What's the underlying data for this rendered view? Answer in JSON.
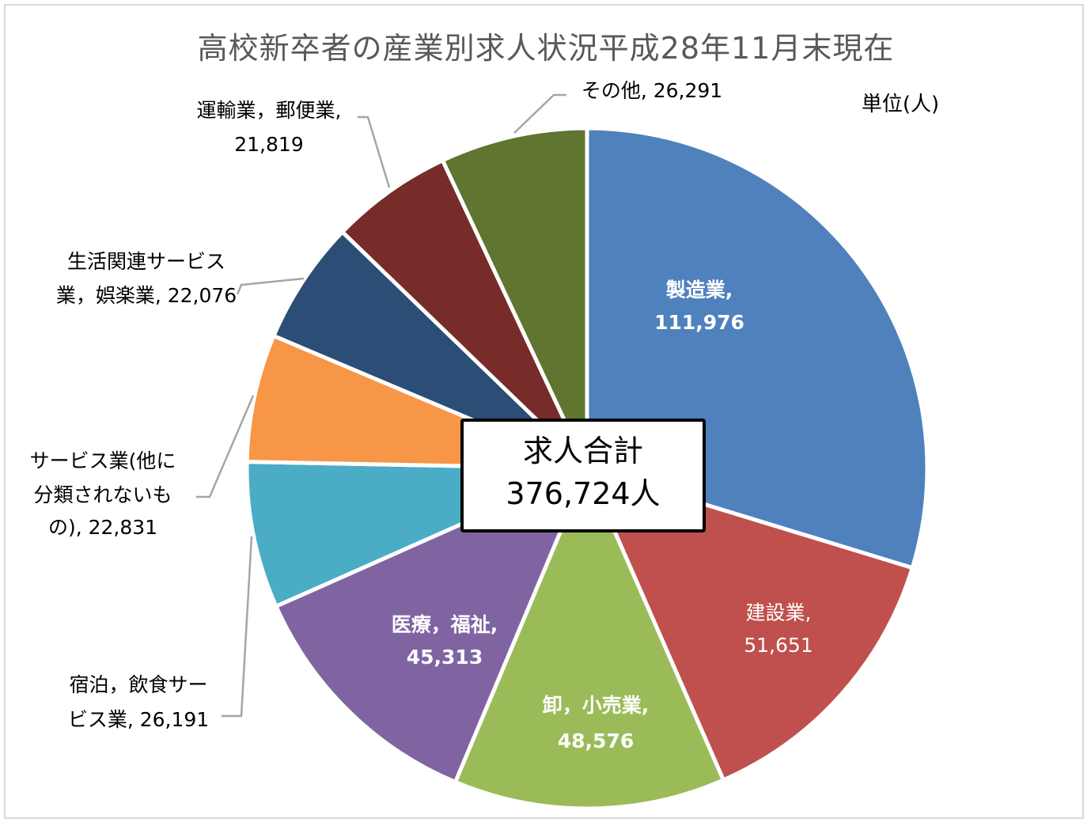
{
  "chart_data": {
    "type": "pie",
    "title": "高校新卒者の産業別求人状況平成28年11月末現在",
    "unit_label": "単位(人)",
    "center_label": {
      "line1": "求人合計",
      "line2": "376,724人"
    },
    "total": 376724,
    "slices": [
      {
        "name": "製造業",
        "value": 111976,
        "color": "#4f81bd",
        "label_lines": [
          "製造業,",
          "111,976"
        ]
      },
      {
        "name": "建設業",
        "value": 51651,
        "color": "#c0504d",
        "label_lines": [
          "建設業,",
          "51,651"
        ]
      },
      {
        "name": "卸，小売業",
        "value": 48576,
        "color": "#9bbb59",
        "label_lines": [
          "卸，小売業,",
          "48,576"
        ]
      },
      {
        "name": "医療，福祉",
        "value": 45313,
        "color": "#8064a2",
        "label_lines": [
          "医療，福祉,",
          "45,313"
        ]
      },
      {
        "name": "宿泊，飲食サービス業",
        "value": 26191,
        "color": "#4bacc6",
        "label_lines": [
          "宿泊，飲食サー",
          "ビス業, 26,191"
        ]
      },
      {
        "name": "サービス業(他に分類されないもの)",
        "value": 22831,
        "color": "#f79646",
        "label_lines": [
          "サービス業(他に",
          "分類されないも",
          "の), 22,831"
        ]
      },
      {
        "name": "生活関連サービス業，娯楽業",
        "value": 22076,
        "color": "#2c4d75",
        "label_lines": [
          "生活関連サービス",
          "業，娯楽業, 22,076"
        ]
      },
      {
        "name": "運輸業，郵便業",
        "value": 21819,
        "color": "#772c2a",
        "label_lines": [
          "運輸業，郵便業,",
          "21,819"
        ]
      },
      {
        "name": "その他",
        "value": 26291,
        "color": "#5f7530",
        "label_lines": [
          "その他, 26,291"
        ]
      }
    ]
  }
}
